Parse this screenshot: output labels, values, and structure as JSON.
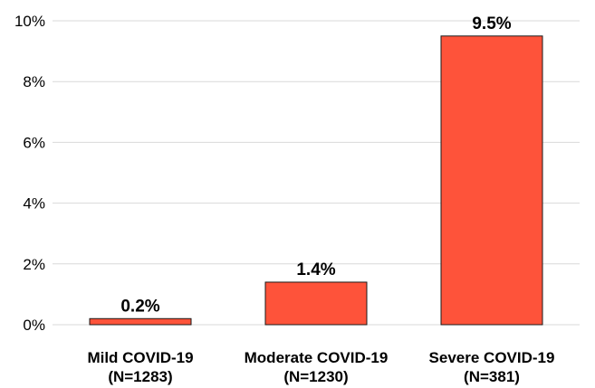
{
  "chart_data": {
    "type": "bar",
    "title": "",
    "xlabel": "",
    "ylabel": "",
    "categories": [
      {
        "line1": "Mild COVID-19",
        "line2": "(N=1283)"
      },
      {
        "line1": "Moderate COVID-19",
        "line2": "(N=1230)"
      },
      {
        "line1": "Severe COVID-19",
        "line2": "(N=381)"
      }
    ],
    "values": [
      0.2,
      1.4,
      9.5
    ],
    "data_labels": [
      "0.2%",
      "1.4%",
      "9.5%"
    ],
    "ylim": [
      0,
      10
    ],
    "yticks": [
      0,
      2,
      4,
      6,
      8,
      10
    ],
    "ytick_labels": [
      "0%",
      "2%",
      "4%",
      "6%",
      "8%",
      "10%"
    ],
    "grid": true,
    "legend": "none",
    "colors": {
      "bar_fill": "#fe533a",
      "bar_stroke": "#1a1a1a",
      "grid": "#d9d9d9"
    }
  }
}
